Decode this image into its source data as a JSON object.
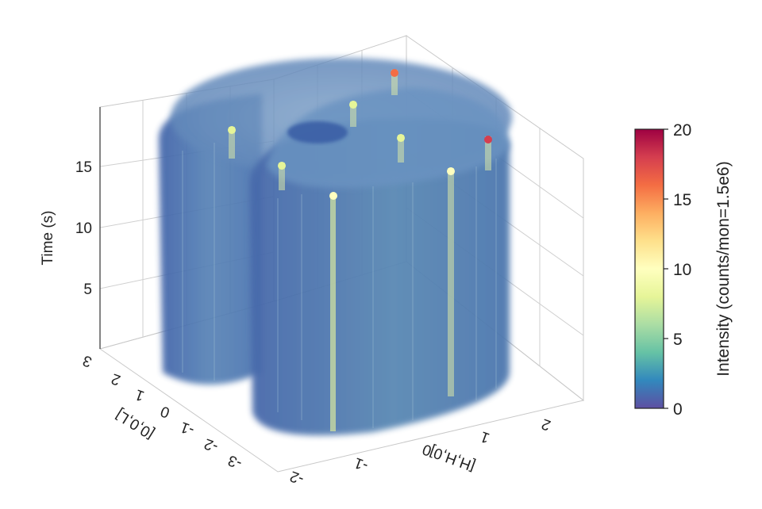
{
  "chart_data": {
    "type": "volume",
    "zlabel": "Time (s)",
    "xlabel": "[H,H,0]",
    "ylabel": "[0,0,L]",
    "x_ticks": [
      "-2",
      "-1",
      "0",
      "1",
      "2"
    ],
    "y_ticks": [
      "3",
      "2",
      "1",
      "0",
      "-1",
      "-2",
      "-3"
    ],
    "z_ticks": [
      "5",
      "10",
      "15"
    ],
    "colorbar": {
      "label": "Intensity (counts/mon=1.5e6)",
      "ticks": [
        "0",
        "5",
        "10",
        "15",
        "20"
      ],
      "range": [
        0,
        20
      ],
      "colormap": [
        "#5e4fa2",
        "#3288bd",
        "#66c2a5",
        "#abdda4",
        "#e6f598",
        "#ffffbf",
        "#fee08b",
        "#fdae61",
        "#f46d43",
        "#d53e4f",
        "#9e0142"
      ]
    },
    "volume": {
      "color": "#4f78b4",
      "background_intensity": 2,
      "bright_streaks": [
        {
          "label": "streak",
          "intensity": 8
        },
        {
          "label": "streak",
          "intensity": 8
        },
        {
          "label": "streak",
          "intensity": 8
        },
        {
          "label": "streak",
          "intensity": 8
        },
        {
          "label": "streak",
          "intensity": 9
        },
        {
          "label": "streak",
          "intensity": 15
        },
        {
          "label": "streak",
          "intensity": 18
        }
      ]
    },
    "grid": true
  }
}
